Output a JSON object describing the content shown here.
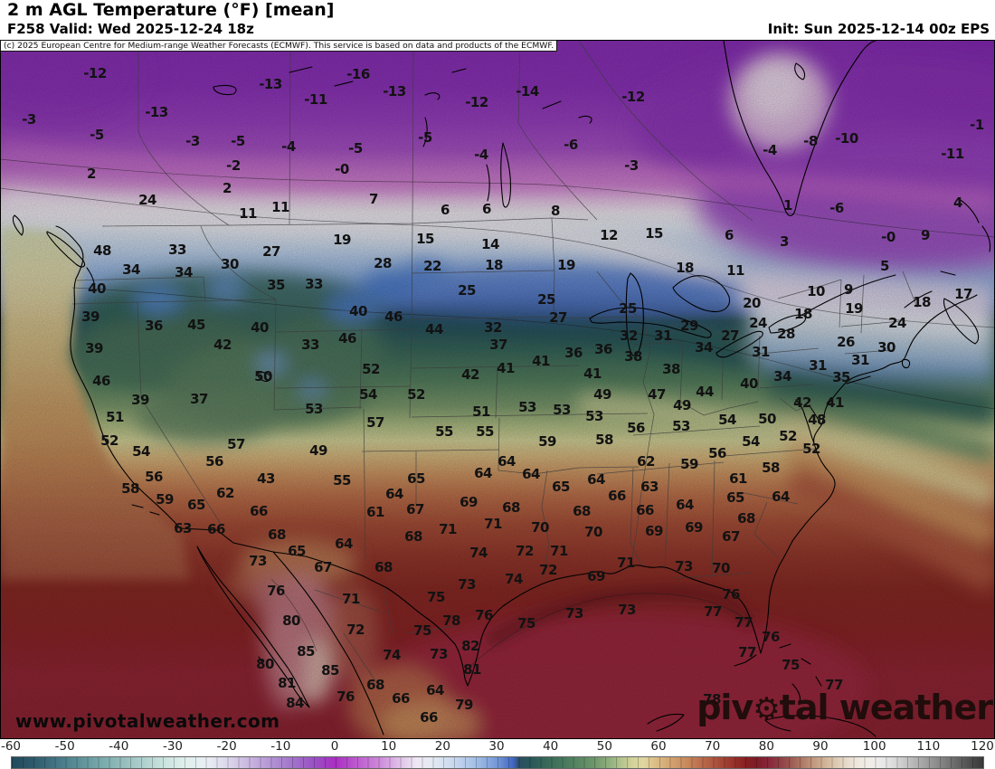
{
  "header": {
    "title": "2 m AGL Temperature (°F) [mean]",
    "valid": "F258 Valid: Wed 2025-12-24 18z",
    "init": "Init: Sun 2025-12-14 00z EPS",
    "copyright": "(c) 2025 European Centre for Medium-range Weather Forecasts (ECMWF). This service is based on data and products of the ECMWF."
  },
  "watermarks": {
    "site": "www.pivotalweather.com",
    "brand_left": "piv",
    "brand_gear": "⚙",
    "brand_right": "tal weather"
  },
  "colorbar": {
    "min": -60,
    "max": 120,
    "ticks": [
      -60,
      -50,
      -40,
      -30,
      -20,
      -10,
      0,
      10,
      20,
      30,
      40,
      50,
      60,
      70,
      80,
      90,
      100,
      110,
      120
    ],
    "stops": [
      [
        -60,
        "#20495c"
      ],
      [
        -56,
        "#2e5a6b"
      ],
      [
        -52,
        "#427484"
      ],
      [
        -48,
        "#598d96"
      ],
      [
        -44,
        "#75a6a9"
      ],
      [
        -40,
        "#90bab9"
      ],
      [
        -36,
        "#accfcc"
      ],
      [
        -32,
        "#c9e2dd"
      ],
      [
        -28,
        "#e0efec"
      ],
      [
        -24,
        "#e9eff5"
      ],
      [
        -20,
        "#dcd7ec"
      ],
      [
        -16,
        "#c9b6e0"
      ],
      [
        -12,
        "#b394d4"
      ],
      [
        -8,
        "#a273cb"
      ],
      [
        -4,
        "#9a51c4"
      ],
      [
        0,
        "#a92fc3"
      ],
      [
        4,
        "#bd5ccf"
      ],
      [
        8,
        "#cd88d9"
      ],
      [
        12,
        "#e0c3ea"
      ],
      [
        15,
        "#eee8f3"
      ],
      [
        18,
        "#e4eaf3"
      ],
      [
        22,
        "#c8d8ee"
      ],
      [
        26,
        "#a3bfe6"
      ],
      [
        30,
        "#7396d6"
      ],
      [
        33,
        "#3f64c0"
      ],
      [
        34,
        "#2b4f62"
      ],
      [
        36,
        "#29565a"
      ],
      [
        40,
        "#3b6e5a"
      ],
      [
        44,
        "#528160"
      ],
      [
        48,
        "#6f976c"
      ],
      [
        51,
        "#94b180"
      ],
      [
        53,
        "#b5c48e"
      ],
      [
        55,
        "#d3d29a"
      ],
      [
        57,
        "#e0d6a0"
      ],
      [
        59,
        "#dcc089"
      ],
      [
        62,
        "#d3a471"
      ],
      [
        65,
        "#c8895c"
      ],
      [
        68,
        "#b96a4b"
      ],
      [
        71,
        "#a84c3a"
      ],
      [
        74,
        "#952f2a"
      ],
      [
        76,
        "#871f22"
      ],
      [
        78,
        "#7d1c27"
      ],
      [
        80,
        "#852538"
      ],
      [
        82,
        "#8e3a44"
      ],
      [
        84,
        "#9a544e"
      ],
      [
        86,
        "#ab7262"
      ],
      [
        88,
        "#bd9077"
      ],
      [
        90,
        "#ccab8f"
      ],
      [
        92,
        "#d9c2a8"
      ],
      [
        94,
        "#e4d5c3"
      ],
      [
        96,
        "#ede4d9"
      ],
      [
        98,
        "#f1ece5"
      ],
      [
        100,
        "#efedeb"
      ],
      [
        102,
        "#e6e6e6"
      ],
      [
        104,
        "#d6d6d6"
      ],
      [
        106,
        "#c2c2c2"
      ],
      [
        108,
        "#aeaeae"
      ],
      [
        110,
        "#9a9a9a"
      ],
      [
        112,
        "#868686"
      ],
      [
        114,
        "#727272"
      ],
      [
        116,
        "#5e5e5e"
      ],
      [
        118,
        "#4a4a4a"
      ],
      [
        120,
        "#383838"
      ]
    ]
  },
  "chart_data": {
    "type": "heatmap",
    "title": "2 m AGL Temperature (°F) [mean]",
    "units": "°F",
    "colorbar_ticks": [
      -60,
      -50,
      -40,
      -30,
      -20,
      -10,
      0,
      10,
      20,
      30,
      40,
      50,
      60,
      70,
      80,
      90,
      100,
      110,
      120
    ],
    "values": [
      [
        "-12",
        105,
        81
      ],
      [
        "-13",
        299,
        93
      ],
      [
        "-13",
        173,
        124
      ],
      [
        "-16",
        396,
        82
      ],
      [
        "-11",
        349,
        110
      ],
      [
        "-3",
        32,
        132
      ],
      [
        "-5",
        107,
        149
      ],
      [
        "-3",
        213,
        156
      ],
      [
        "-5",
        263,
        156
      ],
      [
        "-4",
        319,
        162
      ],
      [
        "-5",
        393,
        164
      ],
      [
        "-0",
        378,
        187
      ],
      [
        "2",
        101,
        192
      ],
      [
        "-2",
        258,
        183
      ],
      [
        "2",
        251,
        208
      ],
      [
        "24",
        163,
        221
      ],
      [
        "11",
        274,
        236
      ],
      [
        "11",
        310,
        229
      ],
      [
        "19",
        378,
        265
      ],
      [
        "33",
        196,
        276
      ],
      [
        "27",
        300,
        278
      ],
      [
        "30",
        254,
        292
      ],
      [
        "34",
        145,
        298
      ],
      [
        "34",
        203,
        301
      ],
      [
        "48",
        113,
        277
      ],
      [
        "-13",
        436,
        101
      ],
      [
        "-12",
        527,
        113
      ],
      [
        "-14",
        583,
        101
      ],
      [
        "-12",
        700,
        107
      ],
      [
        "-5",
        470,
        152
      ],
      [
        "-4",
        532,
        171
      ],
      [
        "-6",
        631,
        160
      ],
      [
        "-3",
        698,
        183
      ],
      [
        "7",
        413,
        220
      ],
      [
        "6",
        492,
        232
      ],
      [
        "6",
        538,
        231
      ],
      [
        "8",
        614,
        233
      ],
      [
        "15",
        470,
        264
      ],
      [
        "14",
        542,
        270
      ],
      [
        "12",
        673,
        260
      ],
      [
        "15",
        723,
        258
      ],
      [
        "28",
        423,
        291
      ],
      [
        "22",
        478,
        294
      ],
      [
        "18",
        546,
        293
      ],
      [
        "19",
        626,
        293
      ],
      [
        "18",
        757,
        296
      ],
      [
        "-8",
        896,
        156
      ],
      [
        "-10",
        936,
        153
      ],
      [
        "-4",
        851,
        166
      ],
      [
        "-11",
        1053,
        170
      ],
      [
        "-1",
        1080,
        138
      ],
      [
        "1",
        871,
        227
      ],
      [
        "-6",
        925,
        230
      ],
      [
        "4",
        1059,
        224
      ],
      [
        "6",
        806,
        260
      ],
      [
        "3",
        867,
        267
      ],
      [
        "-0",
        982,
        262
      ],
      [
        "9",
        1023,
        260
      ],
      [
        "5",
        978,
        294
      ],
      [
        "11",
        813,
        299
      ],
      [
        "40",
        107,
        319
      ],
      [
        "35",
        305,
        315
      ],
      [
        "33",
        347,
        314
      ],
      [
        "39",
        100,
        350
      ],
      [
        "36",
        170,
        360
      ],
      [
        "45",
        217,
        359
      ],
      [
        "40",
        287,
        362
      ],
      [
        "40",
        396,
        344
      ],
      [
        "46",
        384,
        374
      ],
      [
        "33",
        343,
        381
      ],
      [
        "42",
        246,
        381
      ],
      [
        "39",
        104,
        385
      ],
      [
        "46",
        112,
        421
      ],
      [
        "50",
        291,
        416
      ],
      [
        "39",
        155,
        442
      ],
      [
        "37",
        220,
        441
      ],
      [
        "53",
        347,
        452
      ],
      [
        "51",
        127,
        461
      ],
      [
        "52",
        121,
        487
      ],
      [
        "54",
        156,
        499
      ],
      [
        "57",
        261,
        491
      ],
      [
        "56",
        237,
        510
      ],
      [
        "49",
        352,
        498
      ],
      [
        "56",
        170,
        527
      ],
      [
        "43",
        294,
        529
      ],
      [
        "55",
        378,
        531
      ],
      [
        "58",
        144,
        540
      ],
      [
        "59",
        182,
        552
      ],
      [
        "62",
        249,
        545
      ],
      [
        "65",
        217,
        558
      ],
      [
        "25",
        516,
        321
      ],
      [
        "25",
        604,
        331
      ],
      [
        "27",
        617,
        351
      ],
      [
        "25",
        694,
        341
      ],
      [
        "29",
        762,
        360
      ],
      [
        "46",
        435,
        350
      ],
      [
        "44",
        480,
        364
      ],
      [
        "32",
        545,
        362
      ],
      [
        "37",
        551,
        381
      ],
      [
        "32",
        695,
        371
      ],
      [
        "31",
        733,
        371
      ],
      [
        "36",
        634,
        390
      ],
      [
        "36",
        667,
        386
      ],
      [
        "38",
        700,
        394
      ],
      [
        "34",
        778,
        384
      ],
      [
        "41",
        598,
        399
      ],
      [
        "41",
        559,
        407
      ],
      [
        "41",
        655,
        413
      ],
      [
        "38",
        742,
        408
      ],
      [
        "52",
        410,
        408
      ],
      [
        "42",
        520,
        414
      ],
      [
        "52",
        460,
        436
      ],
      [
        "54",
        407,
        436
      ],
      [
        "49",
        666,
        436
      ],
      [
        "47",
        726,
        436
      ],
      [
        "44",
        779,
        433
      ],
      [
        "57",
        415,
        467
      ],
      [
        "51",
        532,
        455
      ],
      [
        "53",
        583,
        450
      ],
      [
        "53",
        621,
        453
      ],
      [
        "53",
        657,
        460
      ],
      [
        "49",
        754,
        448
      ],
      [
        "53",
        753,
        471
      ],
      [
        "55",
        491,
        477
      ],
      [
        "55",
        536,
        477
      ],
      [
        "56",
        703,
        473
      ],
      [
        "59",
        605,
        488
      ],
      [
        "58",
        668,
        486
      ],
      [
        "56",
        793,
        501
      ],
      [
        "59",
        762,
        513
      ],
      [
        "62",
        714,
        510
      ],
      [
        "64",
        560,
        510
      ],
      [
        "64",
        534,
        523
      ],
      [
        "64",
        587,
        524
      ],
      [
        "65",
        460,
        529
      ],
      [
        "64",
        436,
        546
      ],
      [
        "65",
        620,
        538
      ],
      [
        "64",
        659,
        530
      ],
      [
        "63",
        718,
        538
      ],
      [
        "66",
        682,
        548
      ],
      [
        "69",
        518,
        555
      ],
      [
        "10",
        902,
        322
      ],
      [
        "9",
        938,
        320
      ],
      [
        "18",
        1019,
        334
      ],
      [
        "17",
        1065,
        325
      ],
      [
        "20",
        831,
        335
      ],
      [
        "18",
        888,
        347
      ],
      [
        "19",
        944,
        341
      ],
      [
        "24",
        838,
        357
      ],
      [
        "24",
        992,
        357
      ],
      [
        "28",
        869,
        369
      ],
      [
        "27",
        807,
        371
      ],
      [
        "26",
        935,
        378
      ],
      [
        "30",
        980,
        384
      ],
      [
        "31",
        841,
        389
      ],
      [
        "31",
        904,
        404
      ],
      [
        "31",
        951,
        398
      ],
      [
        "35",
        930,
        417
      ],
      [
        "34",
        865,
        416
      ],
      [
        "40",
        828,
        424
      ],
      [
        "41",
        923,
        445
      ],
      [
        "42",
        887,
        445
      ],
      [
        "48",
        903,
        464
      ],
      [
        "50",
        848,
        463
      ],
      [
        "54",
        804,
        464
      ],
      [
        "52",
        871,
        482
      ],
      [
        "54",
        830,
        488
      ],
      [
        "52",
        897,
        496
      ],
      [
        "58",
        852,
        517
      ],
      [
        "61",
        816,
        529
      ],
      [
        "65",
        813,
        550
      ],
      [
        "64",
        863,
        549
      ],
      [
        "66",
        286,
        565
      ],
      [
        "63",
        202,
        584
      ],
      [
        "66",
        239,
        585
      ],
      [
        "68",
        306,
        591
      ],
      [
        "65",
        328,
        609
      ],
      [
        "64",
        380,
        601
      ],
      [
        "73",
        285,
        620
      ],
      [
        "67",
        357,
        627
      ],
      [
        "76",
        305,
        653
      ],
      [
        "71",
        388,
        662
      ],
      [
        "80",
        322,
        686
      ],
      [
        "72",
        393,
        696
      ],
      [
        "85",
        338,
        720
      ],
      [
        "85",
        365,
        741
      ],
      [
        "80",
        293,
        734
      ],
      [
        "81",
        317,
        755
      ],
      [
        "84",
        326,
        777
      ],
      [
        "76",
        382,
        770
      ],
      [
        "61",
        415,
        566
      ],
      [
        "67",
        459,
        563
      ],
      [
        "68",
        565,
        561
      ],
      [
        "68",
        643,
        565
      ],
      [
        "66",
        713,
        564
      ],
      [
        "64",
        757,
        558
      ],
      [
        "71",
        495,
        585
      ],
      [
        "71",
        545,
        579
      ],
      [
        "70",
        597,
        583
      ],
      [
        "70",
        656,
        588
      ],
      [
        "69",
        723,
        587
      ],
      [
        "69",
        767,
        583
      ],
      [
        "68",
        457,
        593
      ],
      [
        "74",
        529,
        611
      ],
      [
        "72",
        580,
        609
      ],
      [
        "71",
        618,
        609
      ],
      [
        "71",
        692,
        622
      ],
      [
        "73",
        756,
        626
      ],
      [
        "68",
        424,
        627
      ],
      [
        "72",
        606,
        630
      ],
      [
        "74",
        568,
        640
      ],
      [
        "73",
        516,
        646
      ],
      [
        "69",
        659,
        637
      ],
      [
        "75",
        482,
        660
      ],
      [
        "78",
        499,
        686
      ],
      [
        "75",
        467,
        697
      ],
      [
        "76",
        535,
        680
      ],
      [
        "75",
        582,
        689
      ],
      [
        "73",
        635,
        678
      ],
      [
        "73",
        693,
        674
      ],
      [
        "77",
        788,
        676
      ],
      [
        "82",
        520,
        714
      ],
      [
        "74",
        433,
        724
      ],
      [
        "73",
        485,
        723
      ],
      [
        "81",
        522,
        740
      ],
      [
        "68",
        415,
        757
      ],
      [
        "66",
        443,
        772
      ],
      [
        "64",
        481,
        763
      ],
      [
        "79",
        513,
        779
      ],
      [
        "66",
        474,
        793
      ],
      [
        "78",
        787,
        773
      ],
      [
        "68",
        825,
        573
      ],
      [
        "67",
        808,
        593
      ],
      [
        "70",
        797,
        628
      ],
      [
        "76",
        808,
        657
      ],
      [
        "77",
        822,
        688
      ],
      [
        "76",
        852,
        704
      ],
      [
        "77",
        826,
        721
      ],
      [
        "75",
        874,
        735
      ],
      [
        "77",
        922,
        757
      ]
    ]
  }
}
